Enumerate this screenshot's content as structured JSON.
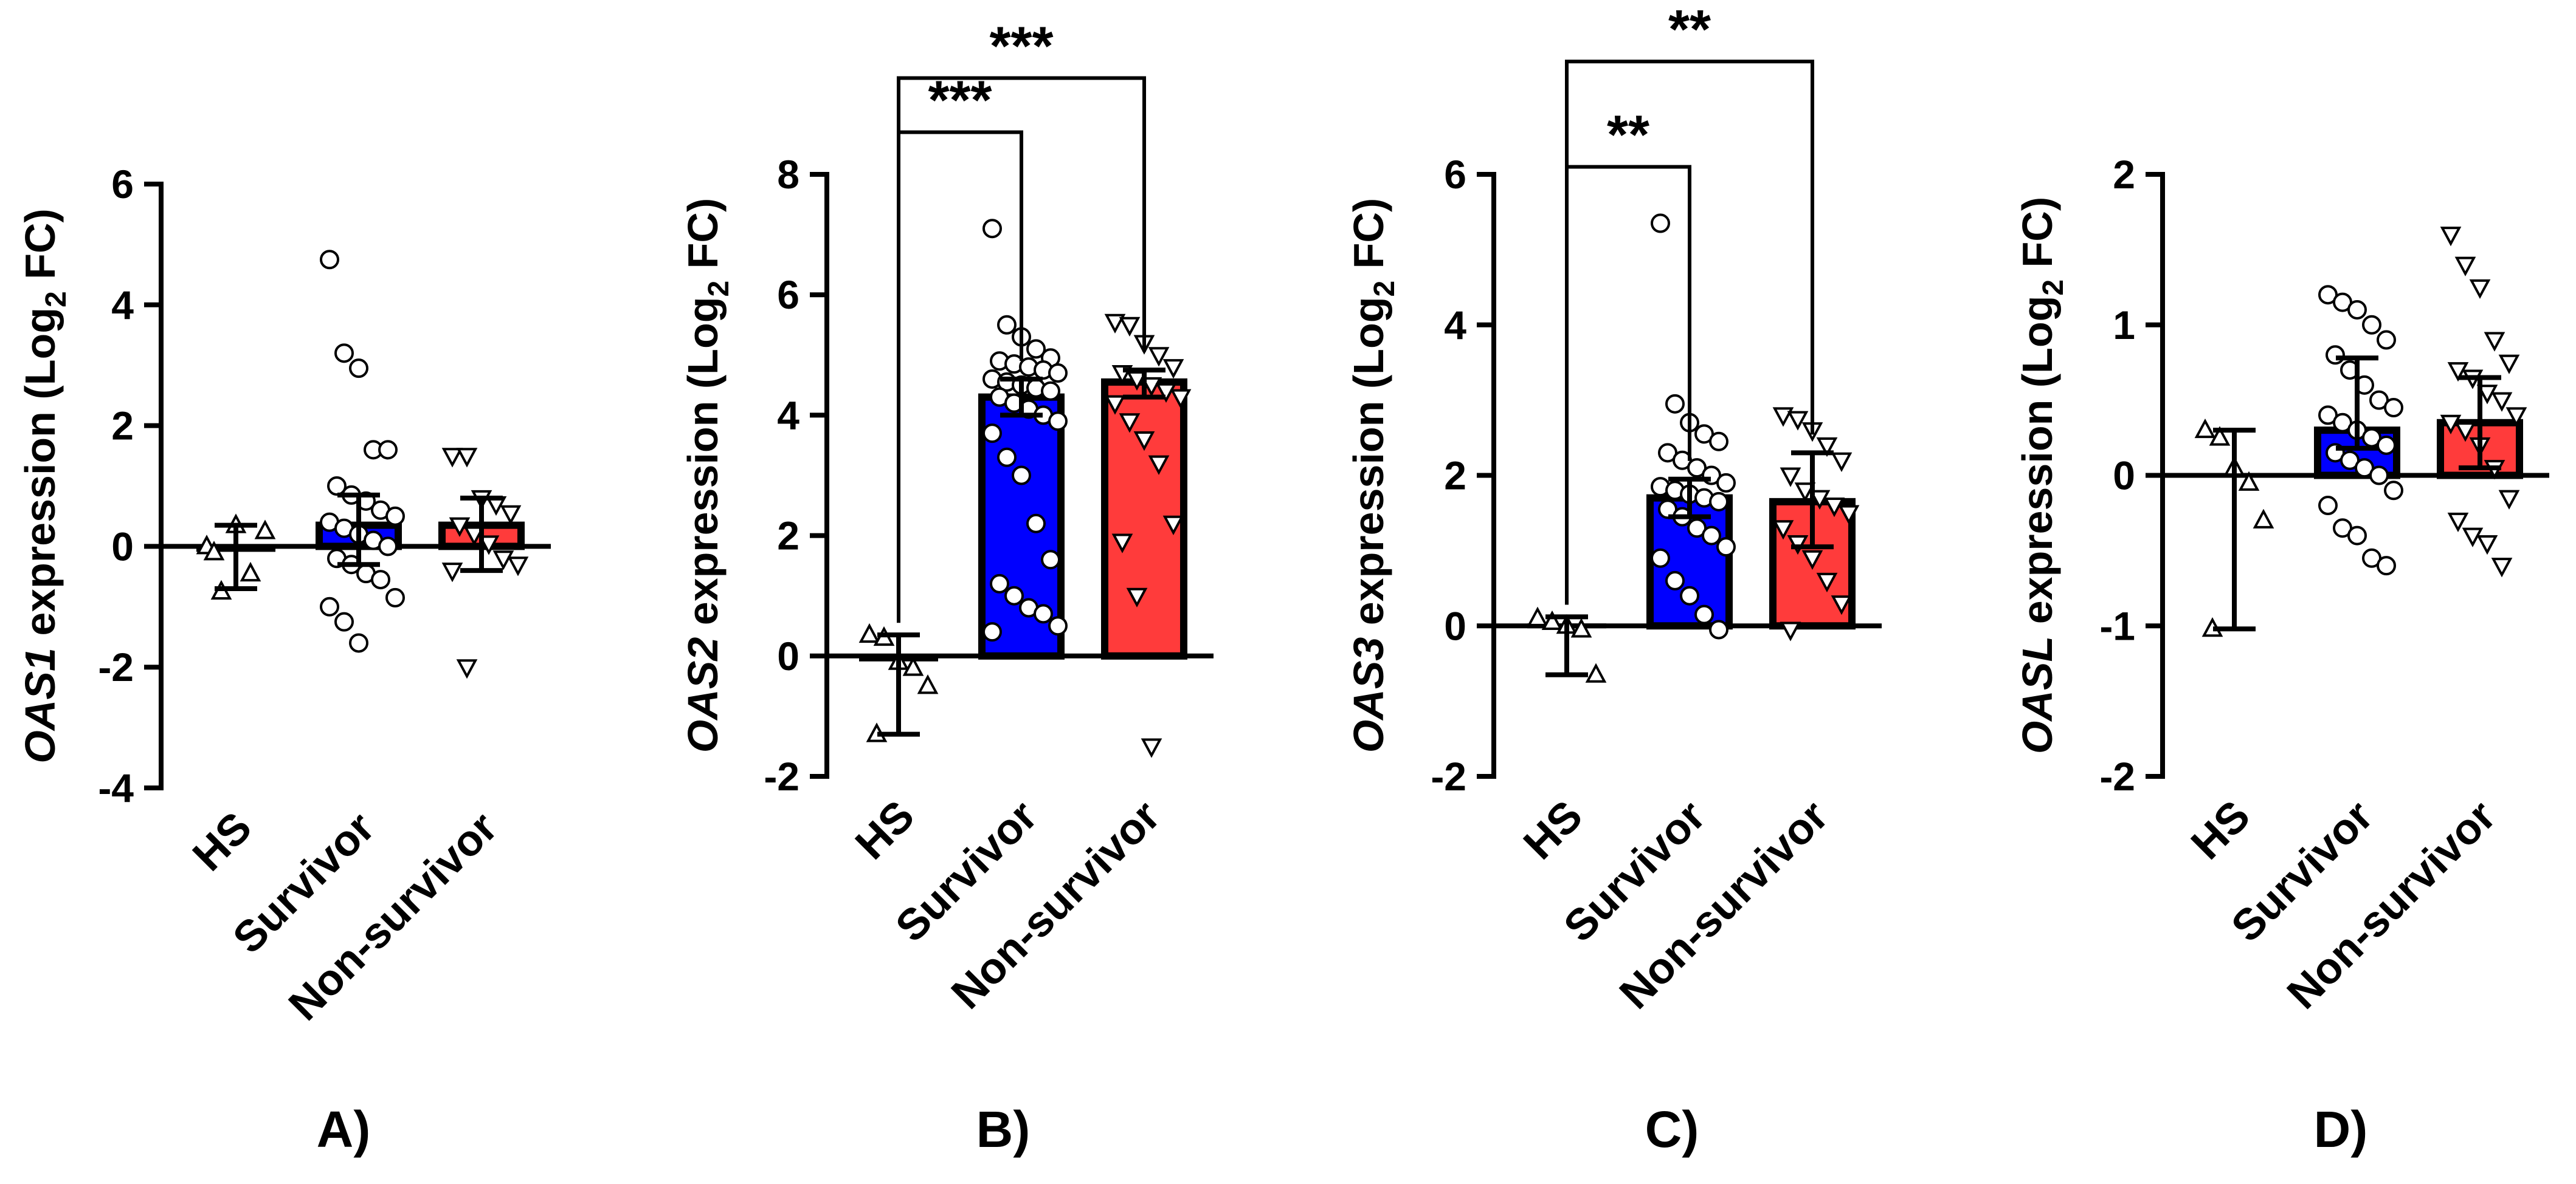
{
  "figure": {
    "colors": {
      "HS": "#ffffff",
      "Survivor": "#0000ff",
      "Non-survivor": "#ff3b3b"
    },
    "marker_shapes": {
      "HS": "triangle-up",
      "Survivor": "circle",
      "Non-survivor": "triangle-down"
    }
  },
  "chart_data": [
    {
      "type": "bar",
      "panel": "A)",
      "ylabel": {
        "gene": "OAS1",
        "text": " expression (Log",
        "sub": "2",
        "end": " FC)"
      },
      "categories": [
        "HS",
        "Survivor",
        "Non-survivor"
      ],
      "ylim": [
        -4,
        6
      ],
      "yticks": [
        -4,
        -2,
        0,
        2,
        4,
        6
      ],
      "ytick_labels": [
        "-4",
        "-2",
        "0",
        "2",
        "4",
        "6"
      ],
      "bars": [
        {
          "category": "HS",
          "mean": -0.05,
          "err_low": -0.7,
          "err_high": 0.35
        },
        {
          "category": "Survivor",
          "mean": 0.35,
          "err_low": -0.3,
          "err_high": 0.85
        },
        {
          "category": "Non-survivor",
          "mean": 0.35,
          "err_low": -0.4,
          "err_high": 0.8
        }
      ],
      "points": [
        [
          0.0,
          -0.75,
          0.35,
          -0.45,
          0.25,
          -0.1
        ],
        [
          4.75,
          3.2,
          2.95,
          1.6,
          1.6,
          1.0,
          0.85,
          0.75,
          0.6,
          0.5,
          0.4,
          0.3,
          0.2,
          0.1,
          0.0,
          -0.2,
          -0.3,
          -0.45,
          -0.55,
          -0.85,
          -1.0,
          -1.25,
          -1.6
        ],
        [
          1.5,
          1.5,
          0.8,
          0.7,
          0.55,
          0.35,
          0.2,
          0.05,
          -0.2,
          -0.3,
          -0.4,
          -2.0
        ]
      ],
      "significance": []
    },
    {
      "type": "bar",
      "panel": "B)",
      "ylabel": {
        "gene": "OAS2",
        "text": " expression (Log",
        "sub": "2",
        "end": " FC)"
      },
      "categories": [
        "HS",
        "Survivor",
        "Non-survivor"
      ],
      "ylim": [
        -2,
        8
      ],
      "yticks": [
        -2,
        0,
        2,
        4,
        6,
        8
      ],
      "ytick_labels": [
        "-2",
        "0",
        "2",
        "4",
        "6",
        "8"
      ],
      "bars": [
        {
          "category": "HS",
          "mean": -0.05,
          "err_low": -1.3,
          "err_high": 0.35
        },
        {
          "category": "Survivor",
          "mean": 4.3,
          "err_low": 4.0,
          "err_high": 4.6
        },
        {
          "category": "Non-survivor",
          "mean": 4.55,
          "err_low": 4.3,
          "err_high": 4.75
        }
      ],
      "points": [
        [
          0.35,
          0.3,
          -0.1,
          -0.2,
          -0.5,
          -1.3
        ],
        [
          7.1,
          5.5,
          5.3,
          5.1,
          4.95,
          4.9,
          4.85,
          4.8,
          4.75,
          4.7,
          4.6,
          4.55,
          4.5,
          4.45,
          4.4,
          4.3,
          4.2,
          4.1,
          4.0,
          3.9,
          3.7,
          3.3,
          3.0,
          2.2,
          1.6,
          1.2,
          1.0,
          0.8,
          0.7,
          0.5,
          0.4
        ],
        [
          5.55,
          5.5,
          5.2,
          5.0,
          4.8,
          4.7,
          4.6,
          4.5,
          4.4,
          4.3,
          4.2,
          3.9,
          3.6,
          3.2,
          2.2,
          1.9,
          1.0,
          -1.5
        ]
      ],
      "significance": [
        {
          "from": "HS",
          "to": "Survivor",
          "label": "***",
          "level": 8.7
        },
        {
          "from": "HS",
          "to": "Non-survivor",
          "label": "***",
          "level": 9.6
        }
      ]
    },
    {
      "type": "bar",
      "panel": "C)",
      "ylabel": {
        "gene": "OAS3",
        "text": " expression (Log",
        "sub": "2",
        "end": " FC)"
      },
      "categories": [
        "HS",
        "Survivor",
        "Non-survivor"
      ],
      "ylim": [
        -2,
        6
      ],
      "yticks": [
        -2,
        0,
        2,
        4,
        6
      ],
      "ytick_labels": [
        "-2",
        "0",
        "2",
        "4",
        "6"
      ],
      "bars": [
        {
          "category": "HS",
          "mean": 0.0,
          "err_low": -0.65,
          "err_high": 0.12
        },
        {
          "category": "Survivor",
          "mean": 1.7,
          "err_low": 1.45,
          "err_high": 1.95
        },
        {
          "category": "Non-survivor",
          "mean": 1.65,
          "err_low": 1.05,
          "err_high": 2.3
        }
      ],
      "points": [
        [
          0.1,
          0.05,
          0.0,
          -0.05,
          -0.65
        ],
        [
          5.35,
          2.95,
          2.7,
          2.55,
          2.45,
          2.3,
          2.2,
          2.1,
          2.0,
          1.9,
          1.85,
          1.8,
          1.75,
          1.7,
          1.65,
          1.55,
          1.45,
          1.3,
          1.2,
          1.05,
          0.9,
          0.6,
          0.4,
          0.15,
          -0.05
        ],
        [
          2.8,
          2.75,
          2.6,
          2.4,
          2.2,
          2.0,
          1.8,
          1.7,
          1.6,
          1.5,
          1.3,
          1.1,
          0.9,
          0.6,
          0.3,
          -0.05
        ]
      ],
      "significance": [
        {
          "from": "HS",
          "to": "Survivor",
          "label": "**",
          "level": 6.1
        },
        {
          "from": "HS",
          "to": "Non-survivor",
          "label": "**",
          "level": 7.5
        }
      ]
    },
    {
      "type": "bar",
      "panel": "D)",
      "ylabel": {
        "gene": "OASL",
        "text": " expression (Log",
        "sub": "2",
        "end": " FC)"
      },
      "categories": [
        "HS",
        "Survivor",
        "Non-survivor"
      ],
      "ylim": [
        -2,
        2
      ],
      "yticks": [
        -2,
        -1,
        0,
        1,
        2
      ],
      "ytick_labels": [
        "-2",
        "-1",
        "0",
        "1",
        "2"
      ],
      "bars": [
        {
          "category": "HS",
          "mean": 0.0,
          "err_low": -1.02,
          "err_high": 0.3
        },
        {
          "category": "Survivor",
          "mean": 0.3,
          "err_low": 0.18,
          "err_high": 0.78
        },
        {
          "category": "Non-survivor",
          "mean": 0.35,
          "err_low": 0.05,
          "err_high": 0.65
        }
      ],
      "points": [
        [
          0.3,
          0.25,
          0.05,
          -0.05,
          -0.3,
          -1.02
        ],
        [
          1.2,
          1.15,
          1.1,
          1.0,
          0.9,
          0.8,
          0.7,
          0.6,
          0.5,
          0.45,
          0.4,
          0.35,
          0.3,
          0.25,
          0.2,
          0.15,
          0.1,
          0.05,
          0.0,
          -0.1,
          -0.2,
          -0.35,
          -0.4,
          -0.55,
          -0.6
        ],
        [
          1.6,
          1.4,
          1.25,
          0.9,
          0.75,
          0.7,
          0.65,
          0.55,
          0.5,
          0.4,
          0.35,
          0.3,
          0.2,
          0.05,
          -0.15,
          -0.3,
          -0.4,
          -0.45,
          -0.6
        ]
      ],
      "significance": []
    }
  ]
}
